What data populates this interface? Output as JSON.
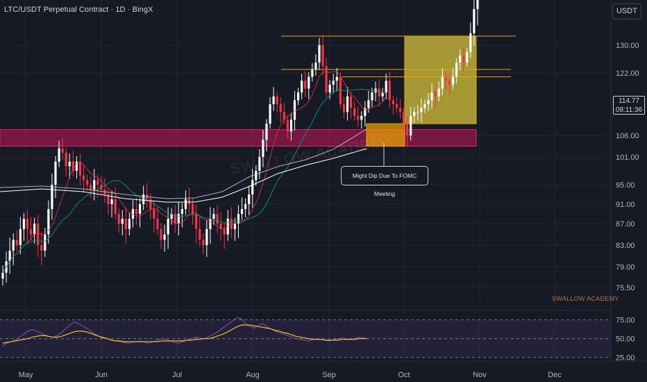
{
  "header": {
    "title": "LTC/USDT Perpetual Contract · 1D · BingX",
    "currency": "USDT"
  },
  "price_label": {
    "value": "114.77",
    "countdown": "08:11:36"
  },
  "annotation": {
    "text": "Might Dip Due To FOMC Meeting"
  },
  "watermark": {
    "logo_text": "SWALLOW ACADEMY",
    "center_text": "SWALLOW ACADEMY"
  },
  "colors": {
    "up": "#ffffff",
    "down": "#f23645",
    "rsi_line": "#7e57c2",
    "rsi_ma": "#f5c518",
    "zone_pink": "#c2185b",
    "zone_yellow": "#d6c33a",
    "level_orange": "#f0a500",
    "ma_fast": "#f23645",
    "ma_slow": "#089981"
  },
  "chart_data": [
    {
      "type": "candlestick",
      "title": "LTC/USDT Perpetual Contract · 1D · BingX",
      "x_tick_labels": [
        "May",
        "Jun",
        "Jul",
        "Aug",
        "Sep",
        "Oct",
        "Nov",
        "Dec"
      ],
      "y_tick_labels": [
        "130.00",
        "122.00",
        "106.00",
        "101.00",
        "95.00",
        "91.00",
        "87.00",
        "83.00",
        "79.00",
        "75.50"
      ],
      "current_price": 114.77,
      "levels": [
        131.5,
        123.0,
        121.0
      ],
      "zones": [
        {
          "label": "support",
          "low": 103.5,
          "high": 107.5
        },
        {
          "label": "target",
          "low": 109.0,
          "high": 131.5
        },
        {
          "label": "dip",
          "low": 103.5,
          "high": 109.0
        }
      ],
      "series_closes": [
        78,
        80,
        82,
        84,
        83,
        86,
        88,
        86,
        85,
        87,
        83,
        82,
        85,
        90,
        95,
        100,
        103,
        102,
        99,
        100,
        98,
        100,
        97,
        96,
        95,
        94,
        96,
        95,
        94,
        93,
        91,
        92,
        89,
        87,
        88,
        86,
        88,
        90,
        89,
        91,
        93,
        92,
        90,
        88,
        86,
        84,
        85,
        88,
        89,
        87,
        89,
        90,
        92,
        91,
        89,
        86,
        84,
        83,
        86,
        88,
        89,
        87,
        86,
        85,
        88,
        86,
        87,
        89,
        90,
        91,
        93,
        96,
        98,
        101,
        105,
        109,
        114,
        116,
        114,
        112,
        110,
        107,
        110,
        115,
        117,
        120,
        118,
        121,
        123,
        125,
        130,
        124,
        117,
        119,
        120,
        121,
        114,
        112,
        116,
        113,
        111,
        110,
        111,
        113,
        115,
        117,
        118,
        116,
        117,
        120,
        115,
        114,
        113,
        112,
        109,
        106,
        111,
        112,
        112,
        113,
        114,
        115,
        117,
        116,
        118,
        121,
        120,
        119,
        121,
        125,
        127,
        125,
        128,
        132,
        136,
        140,
        141
      ]
    },
    {
      "type": "line",
      "title": "",
      "y_tick_labels": [
        "75.00",
        "50.00",
        "25.00"
      ],
      "series": [
        {
          "name": "",
          "values": [
            40,
            44,
            46,
            48,
            52,
            56,
            60,
            62,
            60,
            58,
            55,
            53,
            52,
            54,
            58,
            63,
            68,
            72,
            70,
            67,
            64,
            60,
            56,
            53,
            52,
            50,
            48,
            47,
            46,
            45,
            44,
            45,
            46,
            47,
            45,
            44,
            46,
            48,
            50,
            49,
            47,
            45,
            44,
            46,
            48,
            50,
            52,
            51,
            50,
            52,
            55,
            58,
            62,
            66,
            70,
            74,
            78,
            76,
            70,
            66,
            64,
            67,
            70,
            66,
            63,
            60,
            58,
            56,
            54,
            52,
            50,
            49,
            48,
            47,
            49,
            50,
            49,
            48,
            47,
            49,
            50,
            51,
            50,
            49,
            50,
            52,
            51,
            50
          ]
        },
        {
          "name": "",
          "values": [
            44,
            45,
            46,
            47,
            48,
            49,
            50,
            52,
            53,
            54,
            54,
            53,
            52,
            52,
            53,
            55,
            57,
            59,
            60,
            60,
            59,
            57,
            55,
            53,
            51,
            50,
            48,
            47,
            47,
            46,
            46,
            46,
            46,
            46,
            46,
            46,
            46,
            46,
            47,
            47,
            47,
            47,
            47,
            47,
            48,
            48,
            49,
            49,
            50,
            50,
            51,
            53,
            55,
            57,
            60,
            63,
            66,
            68,
            68,
            68,
            67,
            66,
            65,
            64,
            63,
            61,
            60,
            58,
            57,
            55,
            53,
            52,
            51,
            50,
            49,
            49,
            49,
            48,
            48,
            48,
            48,
            49,
            49,
            49,
            49,
            50,
            50,
            50
          ]
        }
      ]
    }
  ]
}
